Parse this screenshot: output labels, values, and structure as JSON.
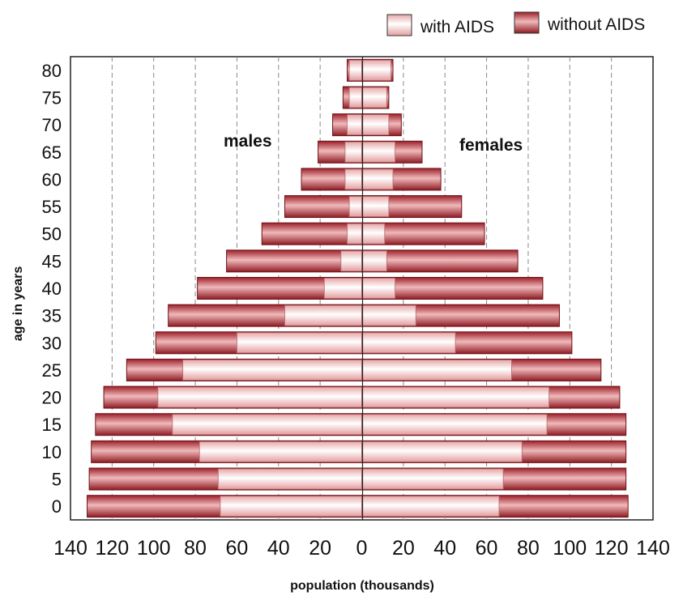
{
  "chart_data": {
    "type": "bar",
    "orientation": "horizontal",
    "layout": "population pyramid",
    "xlabel": "population (thousands)",
    "ylabel": "age in years",
    "xlim": [
      -140,
      140
    ],
    "x_ticks": [
      "140",
      "120",
      "100",
      "80",
      "60",
      "40",
      "20",
      "0",
      "20",
      "40",
      "60",
      "80",
      "100",
      "120",
      "140"
    ],
    "grid": "vertical dashed",
    "legend_position": "top-right",
    "legend": [
      {
        "label": "with AIDS",
        "color": "#fbe3e1"
      },
      {
        "label": "without AIDS",
        "color": "#c8424a"
      }
    ],
    "annotations": {
      "left": "males",
      "right": "females"
    },
    "age_groups": [
      "0",
      "5",
      "10",
      "15",
      "20",
      "25",
      "30",
      "35",
      "40",
      "45",
      "50",
      "55",
      "60",
      "65",
      "70",
      "75",
      "80"
    ],
    "males": {
      "with_aids": [
        68,
        69,
        78,
        91,
        98,
        86,
        60,
        37,
        18,
        10,
        7,
        6,
        8,
        8,
        7,
        6,
        6
      ],
      "without_aids": [
        132,
        131,
        130,
        128,
        124,
        113,
        99,
        93,
        79,
        65,
        48,
        37,
        29,
        21,
        14,
        9,
        7
      ]
    },
    "females": {
      "with_aids": [
        66,
        68,
        77,
        89,
        90,
        72,
        45,
        26,
        16,
        12,
        11,
        13,
        15,
        16,
        13,
        12,
        14
      ],
      "without_aids": [
        128,
        127,
        127,
        127,
        124,
        115,
        101,
        95,
        87,
        75,
        59,
        48,
        38,
        29,
        19,
        13,
        15
      ]
    }
  }
}
